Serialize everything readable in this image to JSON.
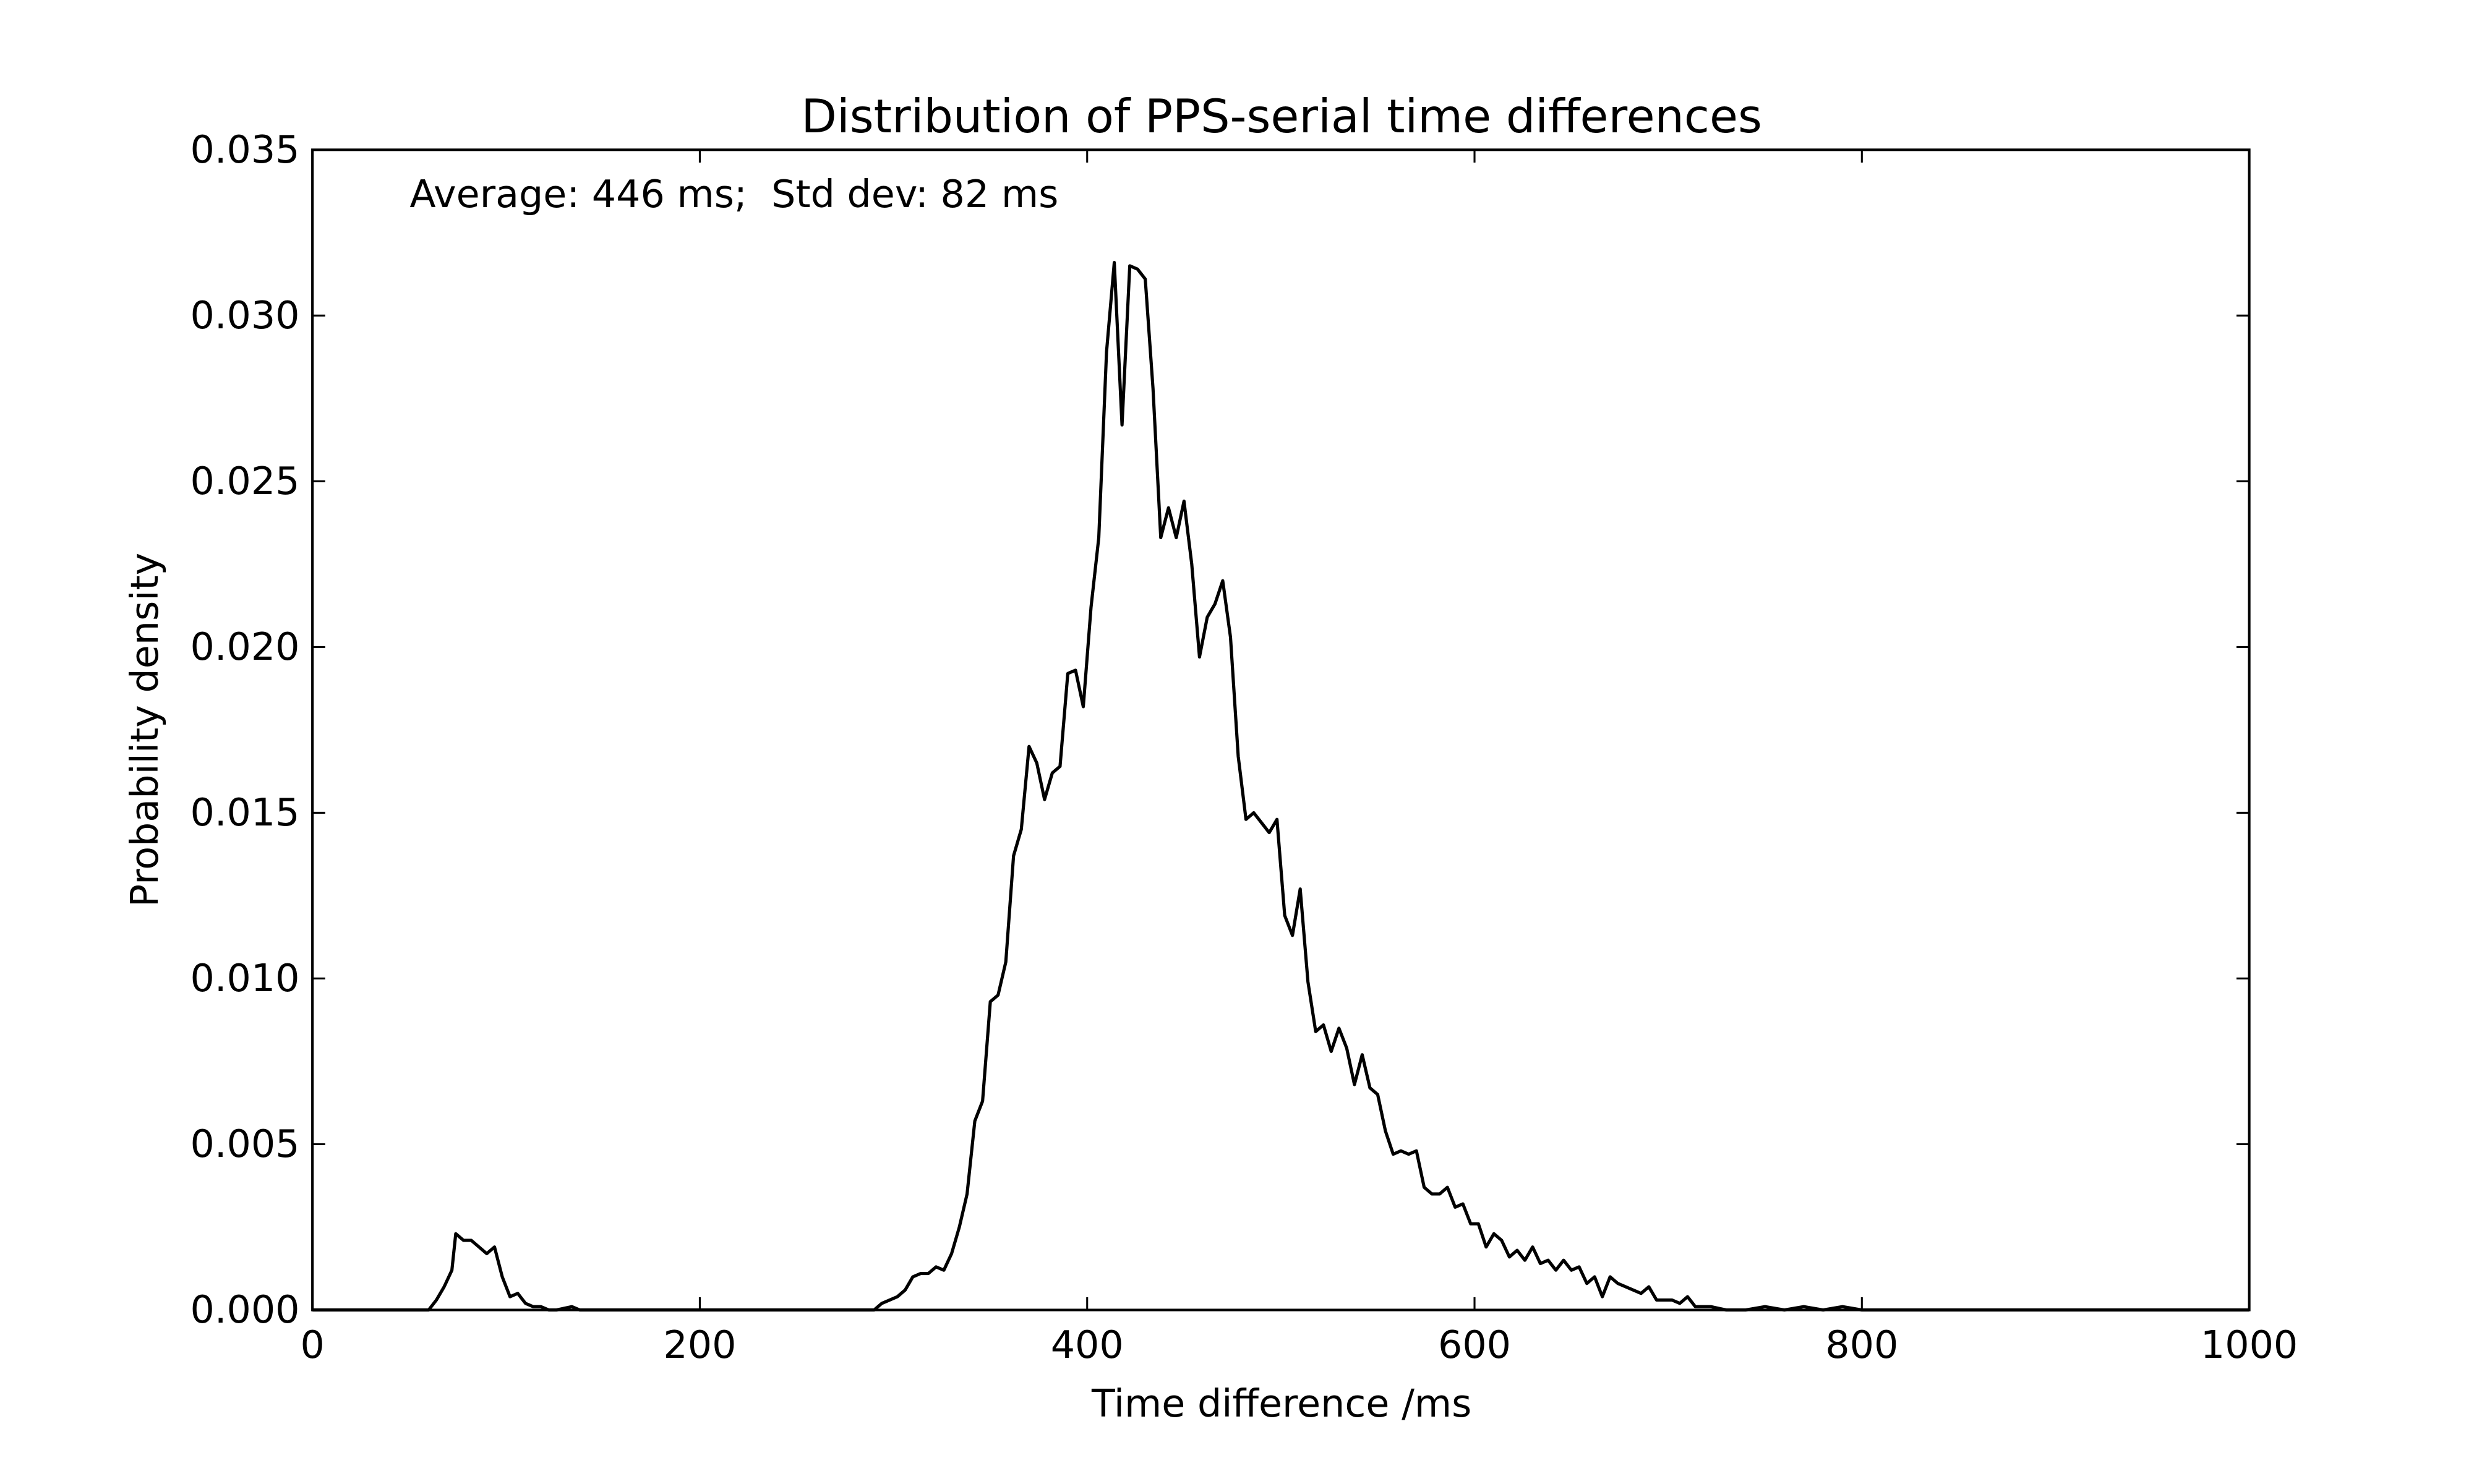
{
  "chart_data": {
    "type": "line",
    "title": "Distribution of PPS-serial time differences",
    "annotation": "Average: 446 ms;  Std dev: 82 ms",
    "xlabel": "Time difference /ms",
    "ylabel": "Probability density",
    "xlim": [
      0,
      1000
    ],
    "xticks": [
      0,
      200,
      400,
      600,
      800,
      1000
    ],
    "ylim": [
      0,
      0.035
    ],
    "yticks": [
      {
        "value": 0,
        "label": "0.000"
      },
      0.005,
      {
        "value": 0.01,
        "label": "0.010"
      },
      0.015,
      {
        "value": 0.02,
        "label": "0.020"
      },
      0.025,
      {
        "value": 0.03,
        "label": "0.030"
      },
      0.035
    ],
    "grid": false,
    "series": [
      {
        "color": "#000000",
        "x": [
          0,
          55,
          60,
          64,
          68,
          72,
          74,
          78,
          82,
          86,
          90,
          94,
          98,
          102,
          106,
          110,
          114,
          118,
          122,
          126,
          134,
          138,
          290,
          294,
          298,
          302,
          306,
          310,
          314,
          318,
          322,
          326,
          330,
          334,
          338,
          342,
          346,
          350,
          354,
          358,
          362,
          366,
          370,
          374,
          378,
          382,
          386,
          390,
          394,
          398,
          402,
          406,
          410,
          414,
          418,
          422,
          426,
          430,
          434,
          438,
          442,
          446,
          450,
          454,
          458,
          462,
          466,
          470,
          474,
          478,
          482,
          486,
          490,
          494,
          498,
          502,
          506,
          510,
          514,
          518,
          522,
          526,
          530,
          534,
          538,
          542,
          546,
          550,
          554,
          558,
          562,
          566,
          570,
          574,
          578,
          582,
          586,
          590,
          594,
          598,
          602,
          606,
          610,
          614,
          618,
          622,
          626,
          630,
          634,
          638,
          642,
          646,
          650,
          654,
          658,
          662,
          666,
          670,
          674,
          678,
          682,
          686,
          690,
          694,
          698,
          702,
          706,
          710,
          714,
          718,
          722,
          726,
          730,
          740,
          750,
          760,
          770,
          780,
          790,
          800,
          1000
        ],
        "values": [
          0,
          0,
          0,
          0.0003,
          0.0007,
          0.0012,
          0.0023,
          0.0021,
          0.0021,
          0.0019,
          0.0017,
          0.0019,
          0.001,
          0.0004,
          0.0005,
          0.0002,
          0.0001,
          0.0001,
          0,
          0,
          0.0001,
          0,
          0,
          0.0002,
          0.0003,
          0.0004,
          0.0006,
          0.001,
          0.0011,
          0.0011,
          0.0013,
          0.0012,
          0.0017,
          0.0025,
          0.0035,
          0.0057,
          0.0063,
          0.0093,
          0.0095,
          0.0105,
          0.0137,
          0.0145,
          0.017,
          0.0165,
          0.0154,
          0.0162,
          0.0164,
          0.0192,
          0.0193,
          0.0182,
          0.0212,
          0.0233,
          0.0289,
          0.0316,
          0.0267,
          0.0315,
          0.0314,
          0.0311,
          0.0278,
          0.0233,
          0.0242,
          0.0233,
          0.0244,
          0.0225,
          0.0197,
          0.0209,
          0.0213,
          0.022,
          0.0203,
          0.0167,
          0.0148,
          0.015,
          0.0147,
          0.0144,
          0.0148,
          0.0119,
          0.0113,
          0.0127,
          0.0099,
          0.0084,
          0.0086,
          0.0078,
          0.0085,
          0.0079,
          0.0068,
          0.0077,
          0.0067,
          0.0065,
          0.0054,
          0.0047,
          0.0048,
          0.0047,
          0.0048,
          0.0037,
          0.0035,
          0.0035,
          0.0037,
          0.0031,
          0.0032,
          0.0026,
          0.0026,
          0.0019,
          0.0023,
          0.0021,
          0.0016,
          0.0018,
          0.0015,
          0.0019,
          0.0014,
          0.0015,
          0.0012,
          0.0015,
          0.0012,
          0.0013,
          0.0008,
          0.001,
          0.0004,
          0.001,
          0.0008,
          0.0007,
          0.0006,
          0.0005,
          0.0007,
          0.0003,
          0.0003,
          0.0003,
          0.0002,
          0.0004,
          0.0001,
          0.0001,
          0.0001,
          5e-05,
          0,
          0,
          0.0001,
          0,
          0.0001,
          0,
          0.0001,
          0,
          0
        ]
      }
    ]
  }
}
